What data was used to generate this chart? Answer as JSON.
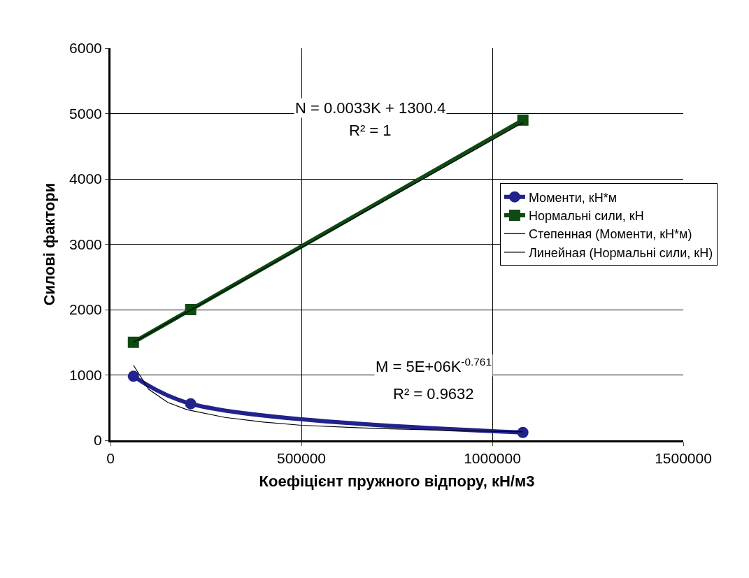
{
  "chart_data": {
    "type": "line",
    "xlabel": "Коефіцієнт пружного відпору, кН/м3",
    "ylabel": "Силові фактори",
    "xlim": [
      0,
      1500000
    ],
    "xticks": [
      0,
      500000,
      1000000,
      1500000
    ],
    "ylim": [
      0,
      6000
    ],
    "yticks": [
      0,
      1000,
      2000,
      3000,
      4000,
      5000,
      6000
    ],
    "grid": true,
    "legend": "right",
    "series": [
      {
        "name": "Моменти, кН*м",
        "color": "#22228c",
        "x": [
          60000,
          210000,
          1080000
        ],
        "values": [
          980,
          560,
          120
        ],
        "marker": "circle"
      },
      {
        "name": "Нормальні сили, кН",
        "color": "#0e4a12",
        "x": [
          60000,
          210000,
          1080000
        ],
        "values": [
          1500,
          2000,
          4900
        ],
        "marker": "square"
      },
      {
        "name": "Степенная (Моменти, кН*м)",
        "color": "#000000",
        "x": [
          60000,
          100000,
          150000,
          200000,
          300000,
          400000,
          500000,
          700000,
          900000,
          1080000
        ],
        "values": [
          1150,
          780,
          580,
          470,
          350,
          280,
          230,
          180,
          150,
          130
        ],
        "marker": "none"
      },
      {
        "name": "Линейная (Нормальні сили, кН)",
        "color": "#000000",
        "x": [
          60000,
          1080000
        ],
        "values": [
          1500,
          4860
        ],
        "marker": "none"
      }
    ],
    "annotations": [
      "N = 0.0033K + 1300.4",
      "R² = 1",
      "M = 5E+06K$^{-0.761}$",
      "R² = 0.9632"
    ]
  }
}
